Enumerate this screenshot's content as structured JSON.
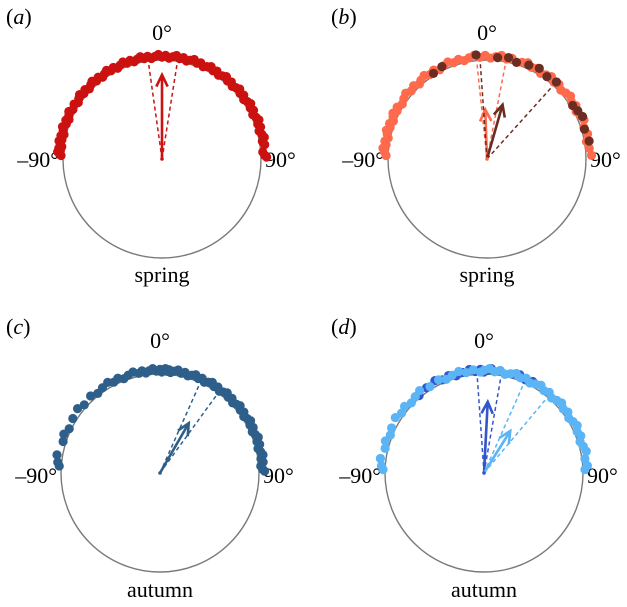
{
  "chart_data": [
    {
      "type": "circular",
      "panel": "(a)",
      "panel_letter": "a",
      "season": "spring",
      "tick_labels": {
        "top": "0°",
        "left": "–90°",
        "right": "90°"
      },
      "point_color": "#cc1111",
      "arrow_color": "#b31515",
      "groups": [
        {
          "color": "#cc1111",
          "mean_direction_deg": 0,
          "mean_vector_length": 0.85,
          "ci_deg": [
            -8,
            9
          ]
        }
      ],
      "points_deg": [
        -88,
        -87,
        -86,
        -85,
        -84,
        -83,
        -82,
        -80,
        -79,
        -77,
        -76,
        -74,
        -72,
        -70,
        -68,
        -67,
        -65,
        -63,
        -61,
        -58,
        -56,
        -54,
        -52,
        -50,
        -48,
        -46,
        -44,
        -42,
        -40,
        -38,
        -36,
        -34,
        -32,
        -30,
        -28,
        -26,
        -24,
        -22,
        -20,
        -18,
        -16,
        -14,
        -12,
        -10,
        -8,
        -6,
        -4,
        -2,
        0,
        2,
        4,
        6,
        8,
        10,
        12,
        14,
        16,
        18,
        20,
        22,
        24,
        26,
        28,
        30,
        32,
        34,
        36,
        38,
        40,
        42,
        44,
        46,
        48,
        50,
        52,
        54,
        56,
        58,
        60,
        62,
        64,
        66,
        68,
        70,
        72,
        74,
        76,
        78,
        80,
        82,
        86,
        88,
        89
      ]
    },
    {
      "type": "circular",
      "panel": "(b)",
      "panel_letter": "b",
      "season": "spring",
      "tick_labels": {
        "top": "0°",
        "left": "–90°",
        "right": "90°"
      },
      "groups": [
        {
          "color": "#ff6a4d",
          "mean_direction_deg": -2,
          "mean_vector_length": 0.5,
          "ci_deg": [
            -6,
            11
          ],
          "points_deg": [
            -88,
            -86,
            -84,
            -82,
            -80,
            -78,
            -76,
            -74,
            -72,
            -70,
            -68,
            -66,
            -64,
            -62,
            -60,
            -57,
            -54,
            -51,
            -48,
            -45,
            -42,
            -40,
            -37,
            -34,
            -31,
            -28,
            -25,
            -22,
            -19,
            -16,
            -13,
            -10,
            -7,
            -4,
            -1,
            2,
            5,
            8,
            11,
            14,
            17,
            20,
            23,
            26,
            29,
            32,
            35,
            38,
            41,
            44,
            47,
            50,
            53,
            56,
            59,
            62,
            65,
            68,
            72,
            76,
            80,
            84,
            88
          ]
        },
        {
          "color": "#6b2d22",
          "mean_direction_deg": 16,
          "mean_vector_length": 0.57,
          "ci_deg": [
            -4,
            42
          ],
          "points_deg": [
            -32,
            -26,
            -6,
            6,
            12,
            17,
            24,
            30,
            36,
            42,
            58,
            62,
            66,
            73,
            80
          ]
        }
      ]
    },
    {
      "type": "circular",
      "panel": "(c)",
      "panel_letter": "c",
      "season": "autumn",
      "tick_labels": {
        "top": "0°",
        "left": "–90°",
        "right": "90°"
      },
      "groups": [
        {
          "color": "#2e5f8a",
          "mean_direction_deg": 30,
          "mean_vector_length": 0.58,
          "ci_deg": [
            24,
            36
          ],
          "points_deg": [
            -86,
            -84,
            -80,
            -72,
            -68,
            -64,
            -58,
            -52,
            -48,
            -42,
            -38,
            -34,
            -30,
            -27,
            -24,
            -21,
            -18,
            -15,
            -12,
            -10,
            -8,
            -6,
            -4,
            -2,
            0,
            1,
            2,
            3,
            4,
            5,
            6,
            8,
            10,
            12,
            14,
            16,
            18,
            20,
            22,
            24,
            26,
            28,
            30,
            32,
            34,
            36,
            38,
            40,
            42,
            44,
            46,
            48,
            50,
            52,
            54,
            56,
            58,
            60,
            62,
            64,
            66,
            68,
            70,
            72,
            74,
            76,
            78,
            80,
            82,
            84,
            86,
            88,
            89
          ]
        }
      ]
    },
    {
      "type": "circular",
      "panel": "(d)",
      "panel_letter": "d",
      "season": "autumn",
      "tick_labels": {
        "top": "0°",
        "left": "–90°",
        "right": "90°"
      },
      "groups": [
        {
          "color": "#3355cc",
          "mean_direction_deg": 3,
          "mean_vector_length": 0.72,
          "ci_deg": [
            -4,
            10
          ],
          "points_deg": [
            -40,
            -34,
            -28,
            -24,
            -20,
            -16,
            -12,
            -8,
            -5,
            -2,
            0,
            2,
            4,
            6,
            9,
            12,
            16,
            20,
            24,
            28
          ]
        },
        {
          "color": "#5ab4f5",
          "mean_direction_deg": 32,
          "mean_vector_length": 0.5,
          "ci_deg": [
            24,
            40
          ],
          "points_deg": [
            -88,
            -86,
            -82,
            -76,
            -72,
            -68,
            -64,
            -58,
            -54,
            -50,
            -46,
            -42,
            -38,
            -32,
            -26,
            -22,
            -18,
            -14,
            -10,
            -6,
            -2,
            0,
            3,
            6,
            9,
            12,
            15,
            18,
            21,
            24,
            27,
            30,
            33,
            36,
            39,
            42,
            45,
            48,
            51,
            54,
            57,
            60,
            63,
            66,
            69,
            72,
            75,
            78,
            82,
            86,
            88
          ]
        }
      ]
    }
  ]
}
